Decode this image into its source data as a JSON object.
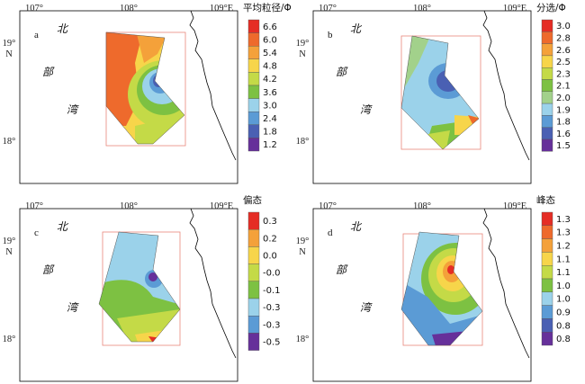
{
  "panels": [
    {
      "id": "a",
      "legend_title": "平均粒径/Φ",
      "legend_values": [
        "6.6",
        "6.0",
        "5.4",
        "4.8",
        "4.2",
        "3.6",
        "3.0",
        "2.4",
        "1.8",
        "1.2"
      ],
      "legend_colors": [
        "#e52d25",
        "#ee6a2c",
        "#f4a13a",
        "#f7d54a",
        "#c4da47",
        "#7dc142",
        "#9bd2ea",
        "#5b9bd5",
        "#4a60b3",
        "#66309a"
      ]
    },
    {
      "id": "b",
      "legend_title": "分选/Φ",
      "legend_values": [
        "3.0",
        "2.8",
        "2.6",
        "2.5",
        "2.3",
        "2.1",
        "2.0",
        "1.9",
        "1.8",
        "1.6",
        "1.5"
      ],
      "legend_colors": [
        "#e52d25",
        "#ee6a2c",
        "#f4a13a",
        "#f7d54a",
        "#c4da47",
        "#7dc142",
        "#a2d18b",
        "#9bd2ea",
        "#5b9bd5",
        "#4a60b3",
        "#66309a"
      ]
    },
    {
      "id": "c",
      "legend_title": "偏态",
      "legend_values": [
        "0.3",
        "0.2",
        "0.0",
        "-0.0",
        "-0.1",
        "-0.3",
        "-0.3",
        "-0.5"
      ],
      "legend_colors": [
        "#e52d25",
        "#f4a13a",
        "#f7d54a",
        "#c4da47",
        "#7dc142",
        "#9bd2ea",
        "#5b9bd5",
        "#66309a"
      ]
    },
    {
      "id": "d",
      "legend_title": "峰态",
      "legend_values": [
        "1.3",
        "1.3",
        "1.2",
        "1.1",
        "1.1",
        "1.0",
        "1.0",
        "0.9",
        "0.8",
        "0.8"
      ],
      "legend_colors": [
        "#e52d25",
        "#ee6a2c",
        "#f4a13a",
        "#f7d54a",
        "#c4da47",
        "#7dc142",
        "#9bd2ea",
        "#5b9bd5",
        "#4a60b3",
        "#66309a"
      ]
    }
  ],
  "axes": {
    "lon_ticks": [
      "107°",
      "108°",
      "109°E"
    ],
    "lat_tick_19": "19°",
    "lat_tick_n": "N",
    "lat_tick_18": "18°"
  },
  "place_labels": {
    "north": "北",
    "bu": "部",
    "wan": "湾"
  }
}
